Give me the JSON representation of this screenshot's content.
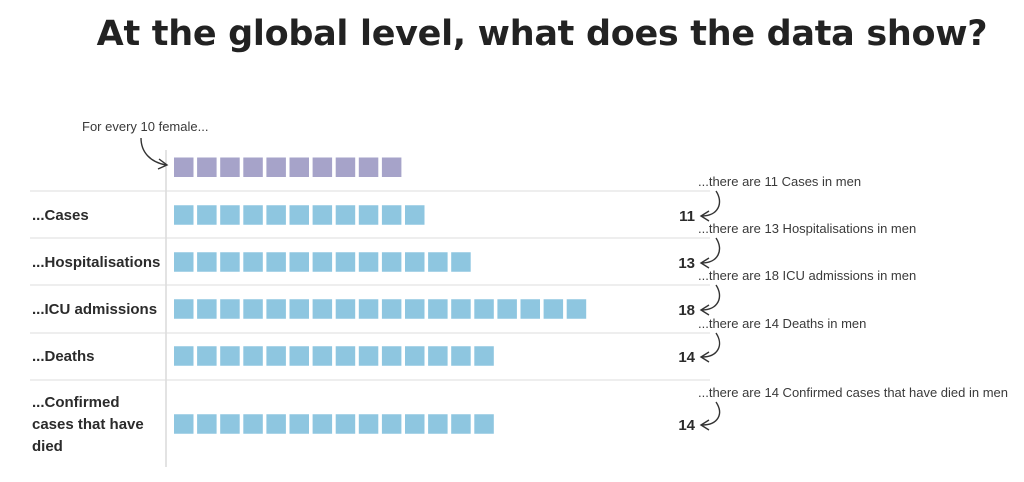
{
  "header": {
    "title": "At the global level, what does the data show?"
  },
  "colors": {
    "female": "#a6a3c9",
    "male": "#8ec6e0",
    "separator": "#dcdcdc",
    "axis": "#d0d0d0",
    "arrow": "#333333"
  },
  "chart_data": {
    "type": "bar",
    "title": "At the global level, what does the data show?",
    "reference": {
      "label": "For every 10 female...",
      "value": 10
    },
    "categories": [
      "...Cases",
      "...Hospitalisations",
      "...ICU admissions",
      "...Deaths",
      "...Confirmed cases that have died"
    ],
    "category_lines": [
      [
        "...Cases"
      ],
      [
        "...Hospitalisations"
      ],
      [
        "...ICU admissions"
      ],
      [
        "...Deaths"
      ],
      [
        "...Confirmed",
        "cases that have",
        "died"
      ]
    ],
    "values": [
      11,
      13,
      18,
      14,
      14
    ],
    "annotations": [
      "...there are 11 Cases in men",
      "...there are 13 Hospitalisations in men",
      "...there are 18 ICU admissions in men",
      "...there are 14 Deaths in men",
      "...there are 14 Confirmed cases that have died in men"
    ]
  }
}
